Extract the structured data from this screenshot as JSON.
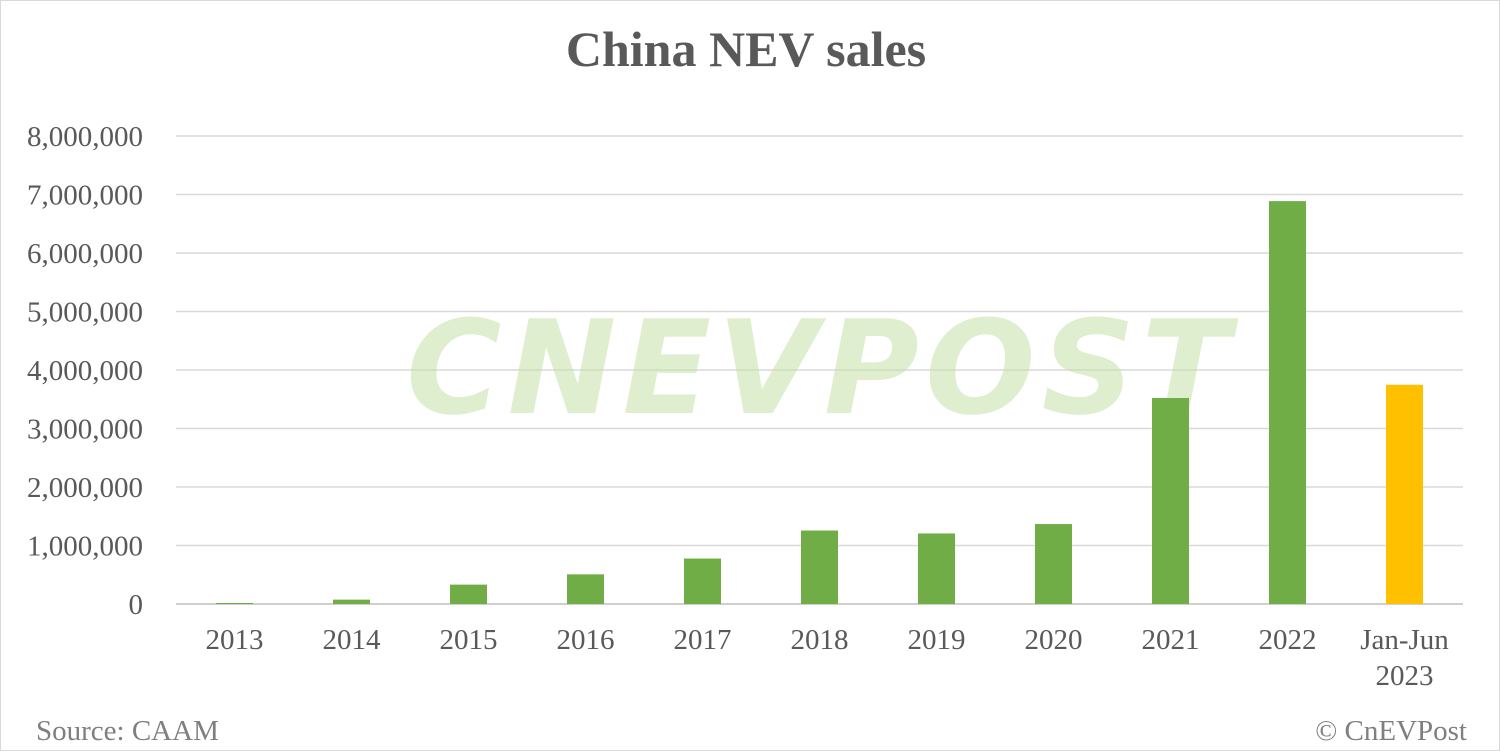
{
  "chart_data": {
    "type": "bar",
    "title": "China NEV sales",
    "xlabel": "",
    "ylabel": "",
    "categories": [
      "2013",
      "2014",
      "2015",
      "2016",
      "2017",
      "2018",
      "2019",
      "2020",
      "2021",
      "2022",
      "Jan-Jun 2023"
    ],
    "values": [
      17600,
      74763,
      331092,
      507000,
      777000,
      1256000,
      1206000,
      1367000,
      3521000,
      6887000,
      3747000
    ],
    "bar_colors": [
      "#70ad47",
      "#70ad47",
      "#70ad47",
      "#70ad47",
      "#70ad47",
      "#70ad47",
      "#70ad47",
      "#70ad47",
      "#70ad47",
      "#70ad47",
      "#ffc000"
    ],
    "ylim": [
      0,
      8000000
    ],
    "yticks": [
      "0",
      "1,000,000",
      "2,000,000",
      "3,000,000",
      "4,000,000",
      "5,000,000",
      "6,000,000",
      "7,000,000",
      "8,000,000"
    ],
    "grid": true,
    "legend": "none"
  },
  "source": "Source: CAAM",
  "copyright": "© CnEVPost",
  "watermark": "CNEVPOST"
}
